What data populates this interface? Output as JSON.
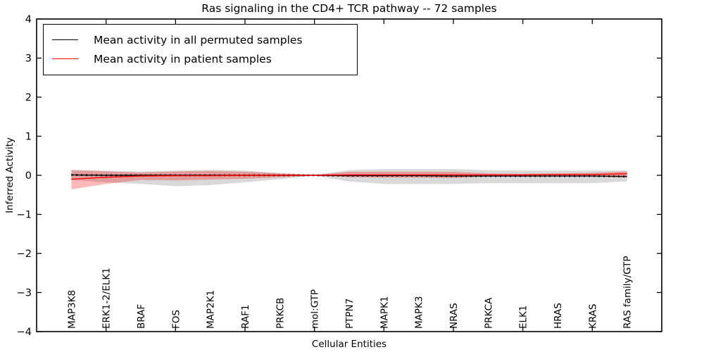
{
  "figure": {
    "title": "Ras signaling in the CD4+ TCR pathway -- 72 samples",
    "xlabel": "Cellular Entities",
    "ylabel": "Inferred Activity"
  },
  "legend": {
    "entries": [
      {
        "label": "Mean activity in all permuted samples",
        "color": "#000000"
      },
      {
        "label": "Mean activity in patient samples",
        "color": "#ff0000"
      }
    ]
  },
  "chart_data": {
    "type": "line",
    "title": "Ras signaling in the CD4+ TCR pathway -- 72 samples",
    "xlabel": "Cellular Entities",
    "ylabel": "Inferred Activity",
    "ylim": [
      -4,
      4
    ],
    "ytick_labels": [
      "−4",
      "−3",
      "−2",
      "−1",
      "0",
      "1",
      "2",
      "3",
      "4"
    ],
    "grid": false,
    "legend_position": "upper left",
    "categories": [
      "MAP3K8",
      "ERK1-2/ELK1",
      "BRAF",
      "FOS",
      "MAP2K1",
      "RAF1",
      "PRKCB",
      "mol:GTP",
      "PTPN7",
      "MAPK1",
      "MAPK3",
      "NRAS",
      "PRKCA",
      "ELK1",
      "HRAS",
      "KRAS",
      "RAS family/GTP"
    ],
    "x_major_tick_indices": [
      1,
      3,
      5,
      7,
      9,
      11,
      13,
      15
    ],
    "series": [
      {
        "name": "Mean activity in all permuted samples",
        "color": "#000000",
        "style": "solid-with-dot-markers",
        "values": [
          0.01,
          0.0,
          0.0,
          0.0,
          0.0,
          0.0,
          0.0,
          0.0,
          -0.01,
          -0.01,
          -0.01,
          -0.02,
          -0.02,
          -0.02,
          -0.02,
          -0.02,
          -0.03
        ]
      },
      {
        "name": "Mean activity in patient samples",
        "color": "#ff0000",
        "style": "solid",
        "values": [
          -0.1,
          -0.05,
          -0.02,
          -0.01,
          -0.01,
          0.0,
          0.0,
          0.0,
          0.01,
          0.01,
          0.01,
          0.01,
          0.01,
          0.01,
          0.02,
          0.02,
          0.04
        ]
      }
    ],
    "bands": [
      {
        "name": "permuted-samples-std-band",
        "color": "rgba(128,128,128,0.30)",
        "upper": [
          0.14,
          0.12,
          0.1,
          0.12,
          0.14,
          0.12,
          0.06,
          0.01,
          0.13,
          0.16,
          0.16,
          0.16,
          0.13,
          0.12,
          0.12,
          0.12,
          0.12
        ],
        "lower": [
          -0.12,
          -0.18,
          -0.22,
          -0.28,
          -0.25,
          -0.18,
          -0.1,
          -0.01,
          -0.16,
          -0.22,
          -0.22,
          -0.22,
          -0.2,
          -0.2,
          -0.2,
          -0.2,
          -0.16
        ]
      },
      {
        "name": "patient-samples-std-band",
        "color": "rgba(255,0,0,0.28)",
        "upper": [
          0.13,
          0.1,
          0.07,
          0.1,
          0.11,
          0.09,
          0.05,
          0.01,
          0.09,
          0.09,
          0.09,
          0.09,
          0.05,
          0.04,
          0.05,
          0.06,
          0.1
        ],
        "lower": [
          -0.36,
          -0.22,
          -0.12,
          -0.13,
          -0.11,
          -0.09,
          -0.05,
          -0.01,
          -0.05,
          -0.06,
          -0.06,
          -0.07,
          -0.03,
          -0.02,
          -0.03,
          -0.03,
          -0.06
        ]
      }
    ]
  }
}
